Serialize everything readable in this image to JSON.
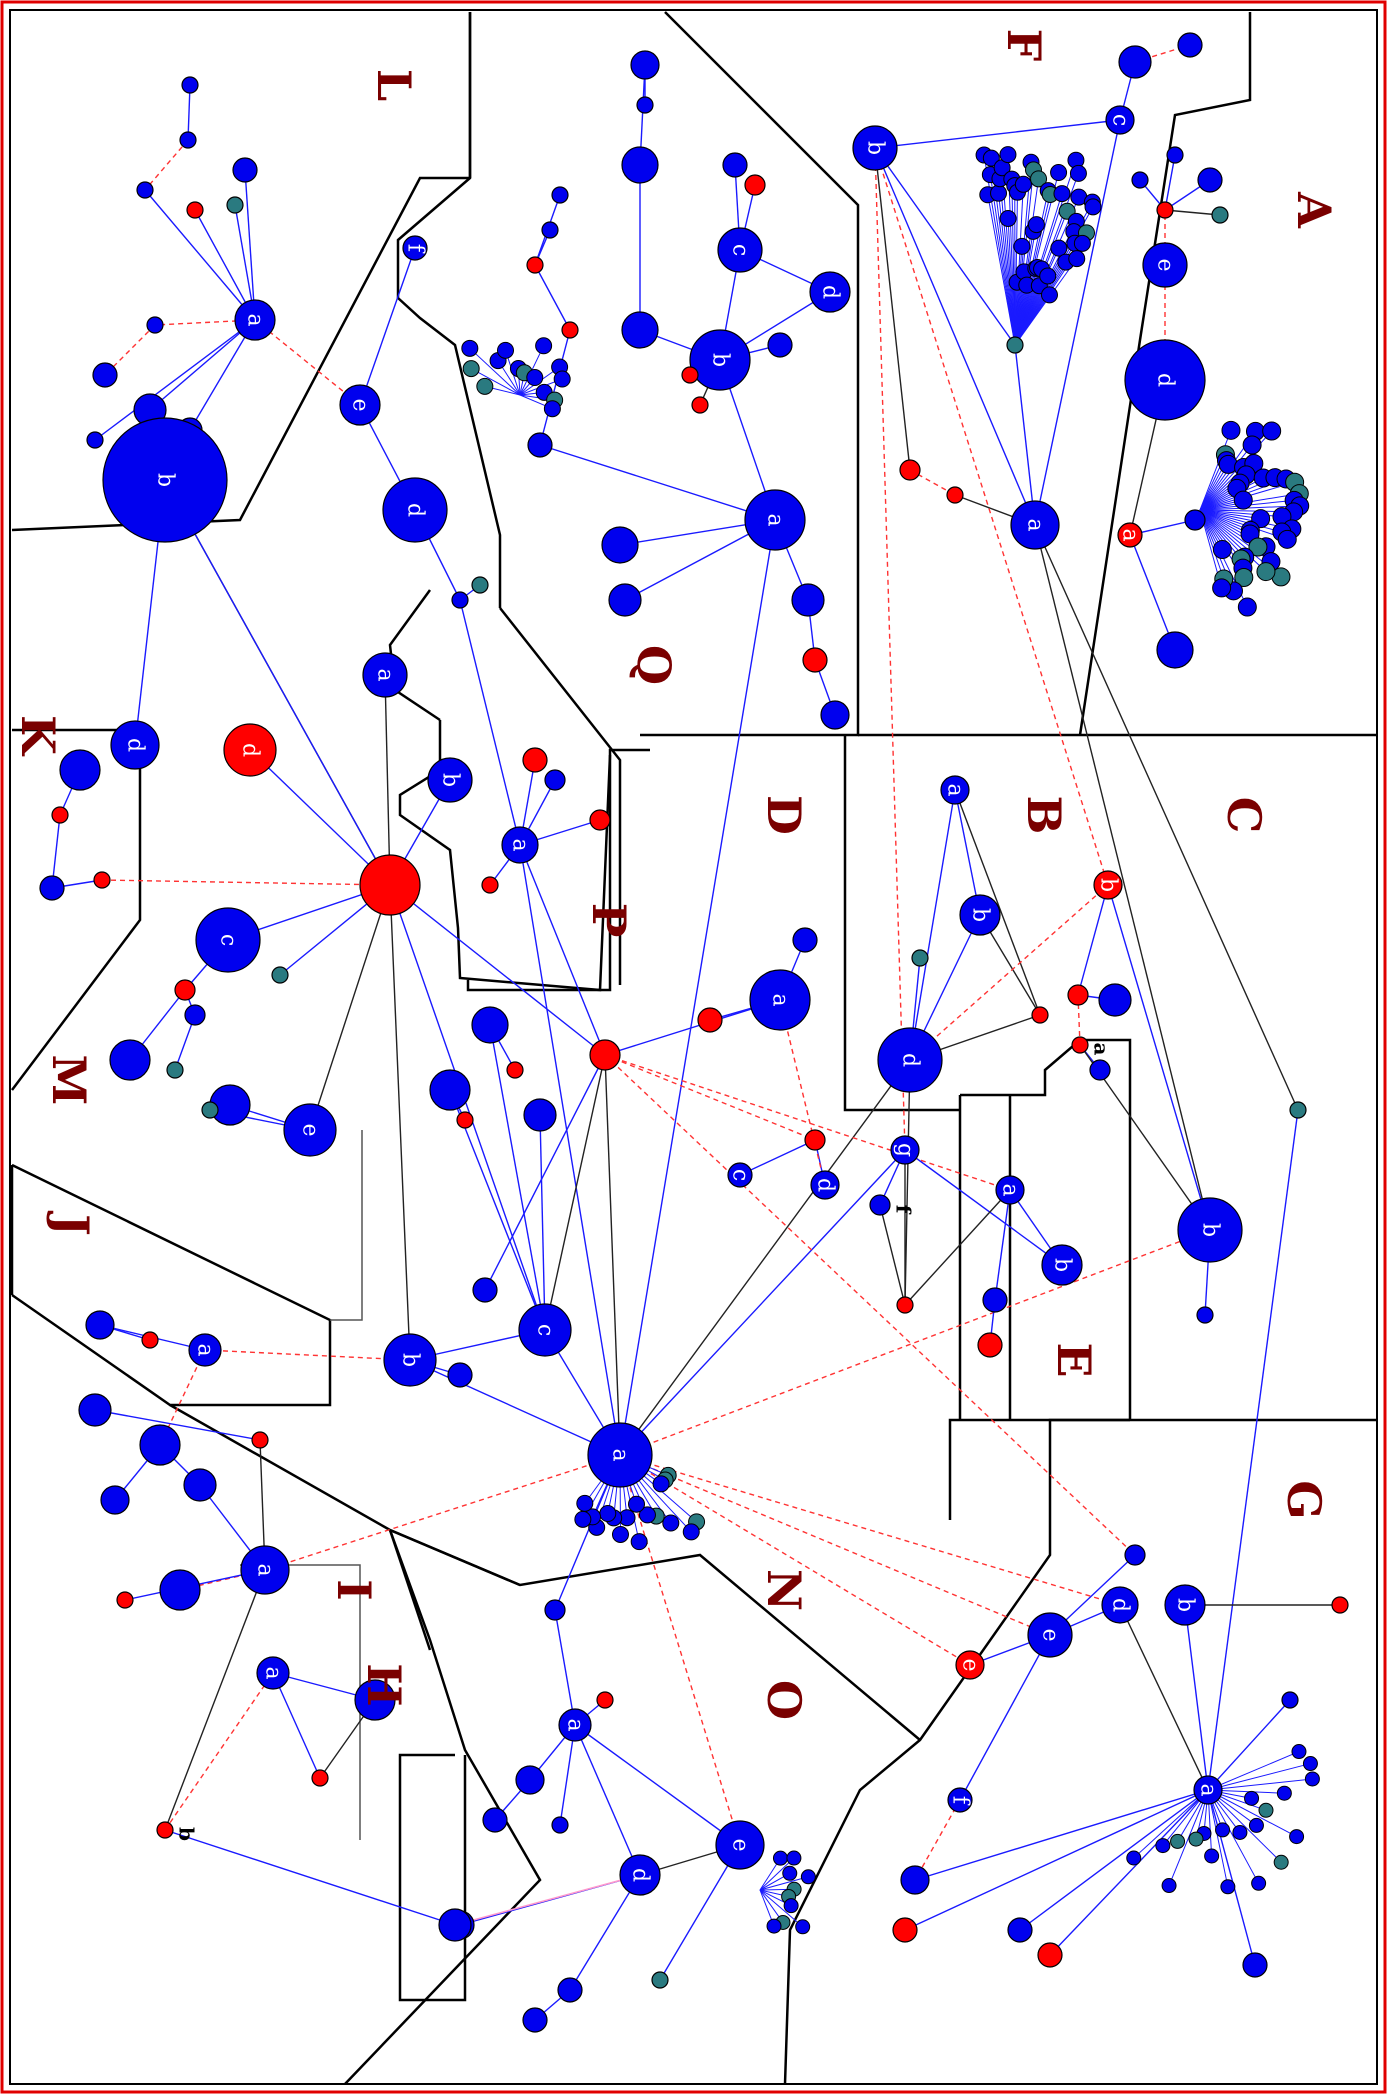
{
  "colors": {
    "frame": "#e00000",
    "boundary": "#000000",
    "node_blue": "#0000ee",
    "node_red": "#ff0000",
    "node_teal": "#2a7a80",
    "edge_blue": "#1a1aff",
    "edge_black": "#222222",
    "edge_red_dashed": "#ff3333",
    "edge_pink": "#ff99cc",
    "label": "#7a0000"
  },
  "regions": [
    "A",
    "B",
    "C",
    "D",
    "E",
    "F",
    "G",
    "H",
    "I",
    "J",
    "K",
    "L",
    "M",
    "N",
    "O",
    "P",
    "Q"
  ],
  "node_labels": [
    "a",
    "b",
    "c",
    "d",
    "e",
    "f",
    "g"
  ]
}
